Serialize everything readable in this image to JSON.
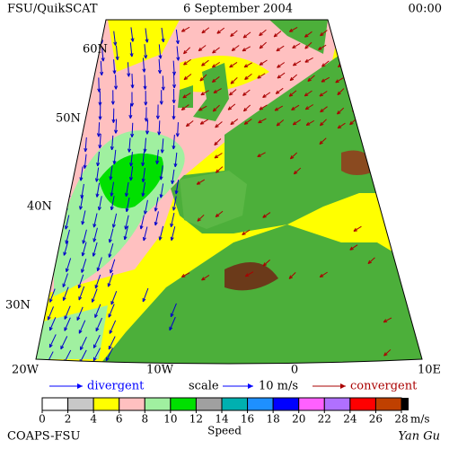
{
  "header": {
    "left": "FSU/QuikSCAT",
    "center": "6 September 2004",
    "right": "00:00"
  },
  "latitudes": [
    "60N",
    "50N",
    "40N",
    "30N"
  ],
  "longitudes": [
    "20W",
    "10W",
    "0",
    "10E"
  ],
  "legend": {
    "divergent": "divergent",
    "scale": "scale",
    "scale_value": "10 m/s",
    "convergent": "convergent"
  },
  "colorbar": {
    "ticks": [
      0,
      2,
      4,
      6,
      8,
      10,
      12,
      14,
      16,
      18,
      20,
      22,
      24,
      26,
      28
    ],
    "colors": [
      "#ffffff",
      "#c8c8c8",
      "#ffff00",
      "#ffc0c0",
      "#a0f0a0",
      "#00e000",
      "#a0a0a0",
      "#00b0b0",
      "#1e90ff",
      "#0000ff",
      "#ff60ff",
      "#b070ff",
      "#ff0000",
      "#c04000"
    ],
    "unit": "m/s",
    "label": "Speed"
  },
  "footer": {
    "left": "COAPS-FSU",
    "right": "Yan Gu"
  }
}
